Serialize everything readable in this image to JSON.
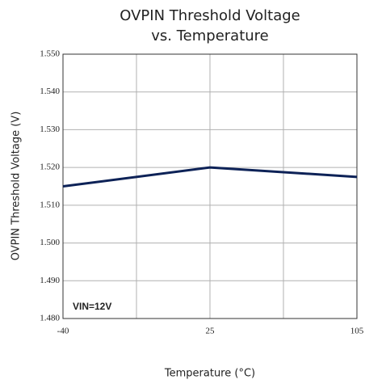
{
  "chart_data": {
    "type": "line",
    "title": [
      "OVPIN Threshold Voltage",
      "vs. Temperature"
    ],
    "x_label": "Temperature (°C)",
    "y_label": "OVPIN Threshold Voltage (V)",
    "annotation": "VIN=12V",
    "categories": [
      "-40",
      "25",
      "105"
    ],
    "series": [
      {
        "name": "VIN=12V",
        "color": "#0d2257",
        "values": [
          1.515,
          1.52,
          1.5175
        ]
      }
    ],
    "ylim": [
      1.48,
      1.55
    ],
    "yticks": [
      {
        "value": 1.48,
        "label": "1.480"
      },
      {
        "value": 1.49,
        "label": "1.490"
      },
      {
        "value": 1.5,
        "label": "1.500"
      },
      {
        "value": 1.51,
        "label": "1.510"
      },
      {
        "value": 1.52,
        "label": "1.520"
      },
      {
        "value": 1.53,
        "label": "1.530"
      },
      {
        "value": 1.54,
        "label": "1.540"
      },
      {
        "value": 1.55,
        "label": "1.550"
      }
    ],
    "grid": true
  }
}
